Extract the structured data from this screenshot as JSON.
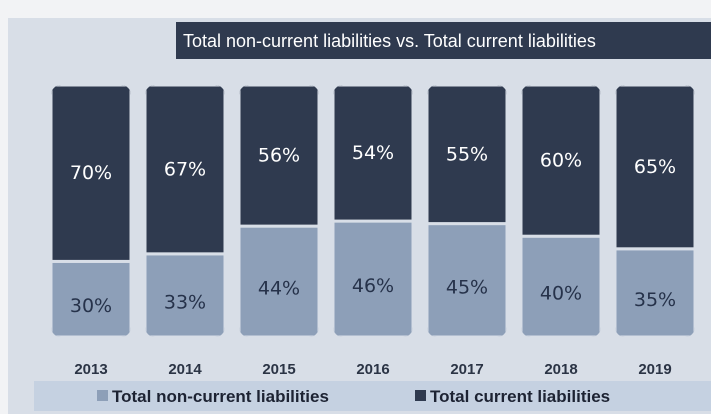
{
  "chart_data": {
    "type": "stacked-bar",
    "title": "Total non-current liabilities vs. Total current liabilities",
    "categories": [
      "2013",
      "2014",
      "2015",
      "2016",
      "2017",
      "2018",
      "2019"
    ],
    "series": [
      {
        "name": "Total non-current liabilities",
        "color": "#8d9fb8",
        "values": [
          30,
          33,
          44,
          46,
          45,
          40,
          35
        ],
        "value_labels": [
          "30%",
          "33%",
          "44%",
          "46%",
          "45%",
          "40%",
          "35%"
        ]
      },
      {
        "name": "Total current liabilities",
        "color": "#2f3a4f",
        "values": [
          70,
          67,
          56,
          54,
          55,
          60,
          65
        ],
        "value_labels": [
          "70%",
          "67%",
          "56%",
          "54%",
          "55%",
          "60%",
          "65%"
        ]
      }
    ],
    "legend": "bottom"
  }
}
